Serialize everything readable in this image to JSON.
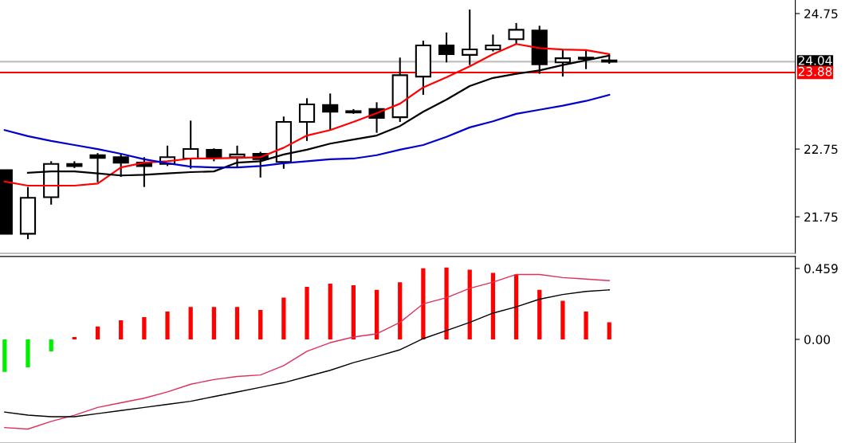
{
  "chart_data": [
    {
      "type": "candlestick",
      "categories": [
        null,
        null,
        null,
        null,
        null,
        null,
        null,
        null,
        null,
        null,
        null,
        null,
        null,
        null,
        null,
        null,
        null,
        null,
        null,
        null,
        null,
        null,
        null,
        null,
        null,
        null,
        null
      ],
      "ohlc": [
        [
          22.44,
          22.44,
          21.5,
          21.5
        ],
        [
          21.5,
          22.19,
          21.42,
          22.03
        ],
        [
          22.04,
          22.57,
          21.93,
          22.53
        ],
        [
          22.53,
          22.57,
          22.47,
          22.5
        ],
        [
          22.66,
          22.69,
          22.26,
          22.62
        ],
        [
          22.63,
          22.68,
          22.34,
          22.55
        ],
        [
          22.55,
          22.63,
          22.19,
          22.5
        ],
        [
          22.53,
          22.8,
          22.5,
          22.63
        ],
        [
          22.61,
          23.17,
          22.46,
          22.75
        ],
        [
          22.74,
          22.76,
          22.57,
          22.63
        ],
        [
          22.63,
          22.8,
          22.48,
          22.67
        ],
        [
          22.68,
          22.71,
          22.33,
          22.6
        ],
        [
          22.56,
          23.23,
          22.46,
          23.15
        ],
        [
          23.15,
          23.5,
          22.87,
          23.41
        ],
        [
          23.4,
          23.57,
          23.03,
          23.3
        ],
        [
          23.31,
          23.34,
          23.27,
          23.29
        ],
        [
          23.34,
          23.44,
          22.99,
          23.21
        ],
        [
          23.22,
          24.1,
          23.15,
          23.84
        ],
        [
          23.82,
          24.35,
          23.55,
          24.28
        ],
        [
          24.28,
          24.47,
          24.03,
          24.15
        ],
        [
          24.14,
          24.81,
          23.99,
          24.22
        ],
        [
          24.22,
          24.44,
          24.19,
          24.28
        ],
        [
          24.37,
          24.61,
          24.3,
          24.51
        ],
        [
          24.5,
          24.57,
          23.86,
          24.0
        ],
        [
          24.03,
          24.21,
          23.82,
          24.09
        ],
        [
          24.1,
          24.22,
          23.93,
          24.08
        ],
        [
          24.06,
          24.13,
          24.01,
          24.04
        ]
      ],
      "series": [
        {
          "type": "line",
          "color": "#ff0000",
          "values": [
            22.27,
            22.21,
            22.21,
            22.21,
            22.24,
            22.48,
            22.55,
            22.57,
            22.61,
            22.61,
            22.62,
            22.63,
            22.77,
            22.95,
            23.03,
            23.15,
            23.28,
            23.42,
            23.66,
            23.81,
            23.97,
            24.15,
            24.3,
            24.24,
            24.22,
            24.21,
            24.15
          ]
        },
        {
          "type": "line",
          "color": "#000000",
          "values": [
            null,
            22.4,
            22.42,
            22.42,
            22.39,
            22.36,
            22.37,
            22.39,
            22.41,
            22.42,
            22.55,
            22.57,
            22.67,
            22.74,
            22.83,
            22.89,
            22.95,
            23.09,
            23.3,
            23.48,
            23.68,
            23.8,
            23.86,
            23.91,
            23.99,
            24.06,
            24.13
          ]
        },
        {
          "type": "line",
          "color": "#0000cc",
          "values": [
            23.03,
            22.94,
            22.87,
            22.81,
            22.75,
            22.68,
            22.6,
            22.54,
            22.49,
            22.48,
            22.48,
            22.5,
            22.54,
            22.57,
            22.6,
            22.61,
            22.66,
            22.74,
            22.81,
            22.93,
            23.07,
            23.16,
            23.27,
            23.33,
            23.39,
            23.46,
            23.55
          ]
        }
      ],
      "ylim": [
        21.21,
        24.95
      ],
      "yticks": [
        21.75,
        22.75,
        24.75
      ],
      "ref_lines": [
        {
          "axis": "y",
          "value": 24.04,
          "label": "24.04",
          "color": "#c0c0c0"
        },
        {
          "axis": "y",
          "value": 23.88,
          "label": "23.88",
          "color": "#ff0000"
        }
      ],
      "tick_labels": "y"
    },
    {
      "type": "bar",
      "categories": [
        null,
        null,
        null,
        null,
        null,
        null,
        null,
        null,
        null,
        null,
        null,
        null,
        null,
        null,
        null,
        null,
        null,
        null,
        null,
        null,
        null,
        null,
        null,
        null,
        null,
        null,
        null
      ],
      "series": [
        {
          "type": "bar",
          "colors": [
            "#00ee00",
            "#00ee00",
            "#00ee00",
            "#ff0000",
            "#ff0000",
            "#ff0000",
            "#ff0000",
            "#ff0000",
            "#ff0000",
            "#ff0000",
            "#ff0000",
            "#ff0000",
            "#ff0000",
            "#ff0000",
            "#ff0000",
            "#ff0000",
            "#ff0000",
            "#ff0000",
            "#ff0000",
            "#ff0000",
            "#ff0000",
            "#ff0000",
            "#ff0000",
            "#ff0000",
            "#ff0000",
            "#ff0000",
            "#ff0000"
          ],
          "values": [
            -0.21,
            -0.18,
            -0.077,
            0.015,
            0.083,
            0.124,
            0.144,
            0.18,
            0.21,
            0.21,
            0.21,
            0.19,
            0.27,
            0.34,
            0.36,
            0.35,
            0.32,
            0.37,
            0.46,
            0.465,
            0.45,
            0.43,
            0.42,
            0.32,
            0.25,
            0.18,
            0.11
          ]
        },
        {
          "type": "line",
          "color": "#e0305a",
          "values": [
            -0.57,
            -0.58,
            -0.53,
            -0.49,
            -0.44,
            -0.41,
            -0.38,
            -0.34,
            -0.29,
            -0.26,
            -0.24,
            -0.23,
            -0.17,
            -0.077,
            -0.021,
            0.015,
            0.036,
            0.11,
            0.23,
            0.27,
            0.33,
            0.37,
            0.42,
            0.42,
            0.4,
            0.39,
            0.38
          ]
        },
        {
          "type": "line",
          "color": "#000000",
          "values": [
            -0.47,
            -0.49,
            -0.5,
            -0.5,
            -0.48,
            -0.46,
            -0.44,
            -0.42,
            -0.4,
            -0.37,
            -0.34,
            -0.31,
            -0.28,
            -0.24,
            -0.2,
            -0.15,
            -0.11,
            -0.067,
            0.005,
            0.057,
            0.11,
            0.17,
            0.21,
            0.26,
            0.29,
            0.31,
            0.32
          ]
        }
      ],
      "ylim": [
        -0.67,
        0.536
      ],
      "yticks": [
        0.459,
        {
          "value": 0,
          "label": "0.00"
        }
      ],
      "tick_labels": "y"
    }
  ]
}
